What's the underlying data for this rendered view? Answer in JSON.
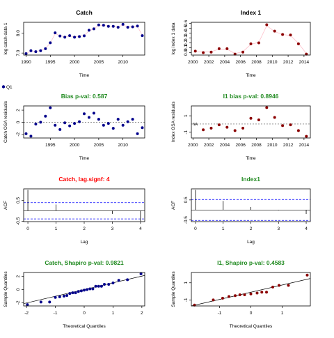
{
  "legend_label": "Q1",
  "chart_data": [
    {
      "id": "catch",
      "type": "scatter",
      "title": "Catch",
      "title_color": "#000000",
      "xlabel": "Time",
      "ylabel": "log catch data 1",
      "xlim": [
        1989.5,
        2014.5
      ],
      "ylim": [
        6.9,
        8.55
      ],
      "xticks": [
        1990,
        1995,
        2000,
        2005,
        2010
      ],
      "yticks": [
        7.0,
        8.0
      ],
      "ytick_labels": [
        "7.0",
        "8.0"
      ],
      "connect_line": true,
      "x": [
        1990,
        1991,
        1992,
        1993,
        1994,
        1995,
        1996,
        1997,
        1998,
        1999,
        2000,
        2001,
        2002,
        2003,
        2004,
        2005,
        2006,
        2007,
        2008,
        2009,
        2010,
        2011,
        2012,
        2013,
        2014
      ],
      "y": [
        6.97,
        7.12,
        7.07,
        7.12,
        7.22,
        7.52,
        8.02,
        7.86,
        7.8,
        7.88,
        7.8,
        7.83,
        7.87,
        8.15,
        8.22,
        8.42,
        8.4,
        8.35,
        8.35,
        8.3,
        8.45,
        8.3,
        8.32,
        8.36,
        7.88
      ],
      "series": [
        {
          "name": "observed",
          "values": [
            6.97,
            7.12,
            7.07,
            7.12,
            7.22,
            7.52,
            8.02,
            7.86,
            7.8,
            7.88,
            7.8,
            7.83,
            7.87,
            8.15,
            8.22,
            8.42,
            8.4,
            8.35,
            8.35,
            8.3,
            8.45,
            8.3,
            8.32,
            8.36,
            7.88
          ],
          "color": "#00008b"
        },
        {
          "name": "fitted",
          "values": [
            6.98,
            7.1,
            7.09,
            7.13,
            7.24,
            7.5,
            7.98,
            7.88,
            7.82,
            7.86,
            7.82,
            7.84,
            7.88,
            8.12,
            8.22,
            8.4,
            8.4,
            8.36,
            8.34,
            8.31,
            8.42,
            8.31,
            8.33,
            8.34,
            7.9
          ],
          "color": "#ffc0cb"
        }
      ]
    },
    {
      "id": "index1",
      "type": "scatter",
      "title": "Index 1",
      "title_color": "#000000",
      "xlabel": "Time",
      "ylabel": "log index 1 data",
      "xlim": [
        1999.8,
        2014.8
      ],
      "ylim": [
        -0.05,
        0.62
      ],
      "xticks": [
        2000,
        2002,
        2004,
        2006,
        2008,
        2010,
        2012,
        2014
      ],
      "yticks": [
        0.0,
        0.1,
        0.2,
        0.3,
        0.4,
        0.5,
        0.6
      ],
      "ytick_labels": [
        "0.0",
        "0.1",
        "0.2",
        "0.3",
        "0.4",
        "0.5",
        "0.6"
      ],
      "connect_line": true,
      "x": [
        2000.3,
        2001.3,
        2002.3,
        2003.3,
        2004.3,
        2005.3,
        2006.3,
        2007.3,
        2008.3,
        2009.3,
        2010.3,
        2011.3,
        2012.3,
        2013.3,
        2014.3
      ],
      "y": [
        0.03,
        0.0,
        0.01,
        0.08,
        0.08,
        -0.03,
        0.01,
        0.18,
        0.2,
        0.57,
        0.44,
        0.37,
        0.36,
        0.18,
        -0.03
      ],
      "series": [
        {
          "name": "observed",
          "values": [
            0.03,
            0.0,
            0.01,
            0.08,
            0.08,
            -0.03,
            0.01,
            0.18,
            0.2,
            0.57,
            0.44,
            0.37,
            0.36,
            0.18,
            -0.03
          ],
          "color": "#8b0000"
        },
        {
          "name": "fitted",
          "values": [
            0.02,
            0.01,
            0.02,
            0.07,
            0.07,
            -0.02,
            0.02,
            0.17,
            0.21,
            0.55,
            0.43,
            0.37,
            0.35,
            0.19,
            -0.02
          ],
          "color": "#ffc0cb"
        }
      ]
    },
    {
      "id": "bias-catch",
      "type": "scatter",
      "title": "Bias p-val: 0.587",
      "title_color": "#228b22",
      "xlabel": "Time",
      "ylabel": "Catch OSA residuals",
      "xlim": [
        1989.5,
        2014.5
      ],
      "ylim": [
        -2.6,
        2.7
      ],
      "xticks": [
        1995,
        2000,
        2005,
        2010
      ],
      "yticks": [
        -2,
        0,
        2
      ],
      "ytick_labels": [
        "-2",
        "0",
        "2"
      ],
      "zero_line": true,
      "x": [
        1990,
        1991,
        1992,
        1993,
        1994,
        1995,
        1996,
        1997,
        1998,
        1999,
        2000,
        2001,
        2002,
        2003,
        2004,
        2005,
        2006,
        2007,
        2008,
        2009,
        2010,
        2011,
        2012,
        2013,
        2014
      ],
      "y": [
        -1.9,
        -2.3,
        -0.3,
        0.0,
        1.0,
        2.4,
        -0.5,
        -1.2,
        -0.1,
        -0.6,
        -0.2,
        0.1,
        1.4,
        0.8,
        1.5,
        0.5,
        -0.5,
        -0.2,
        -1.0,
        0.5,
        -0.5,
        0.1,
        0.5,
        -1.9,
        -0.9
      ],
      "series": [
        {
          "name": "residuals",
          "values": [
            -1.9,
            -2.3,
            -0.3,
            0.0,
            1.0,
            2.4,
            -0.5,
            -1.2,
            -0.1,
            -0.6,
            -0.2,
            0.1,
            1.4,
            0.8,
            1.5,
            0.5,
            -0.5,
            -0.2,
            -1.0,
            0.5,
            -0.5,
            0.1,
            0.5,
            -1.9,
            -0.9
          ],
          "color": "#00008b"
        }
      ]
    },
    {
      "id": "bias-index",
      "type": "scatter",
      "title": "I1 bias p-val: 0.8946",
      "title_color": "#228b22",
      "xlabel": "Time",
      "ylabel": "Index OSA residuals",
      "xlim": [
        1999.8,
        2014.8
      ],
      "ylim": [
        -1.7,
        2.2
      ],
      "xticks": [
        2000,
        2002,
        2004,
        2006,
        2008,
        2010,
        2012,
        2014
      ],
      "yticks": [
        -1,
        1
      ],
      "ytick_labels": [
        "-1",
        "1"
      ],
      "zero_line": true,
      "na_label": "NA",
      "x": [
        2001.3,
        2002.3,
        2003.3,
        2004.3,
        2005.3,
        2006.3,
        2007.3,
        2008.3,
        2009.3,
        2010.3,
        2011.3,
        2012.3,
        2013.3,
        2014.3
      ],
      "y": [
        -0.7,
        -0.5,
        -0.1,
        -0.4,
        -0.8,
        -0.5,
        0.7,
        0.5,
        2.0,
        0.8,
        -0.2,
        -0.1,
        -0.8,
        -1.5
      ],
      "series": [
        {
          "name": "residuals",
          "values": [
            -0.7,
            -0.5,
            -0.1,
            -0.4,
            -0.8,
            -0.5,
            0.7,
            0.5,
            2.0,
            0.8,
            -0.2,
            -0.1,
            -0.8,
            -1.5
          ],
          "color": "#8b0000"
        }
      ]
    },
    {
      "id": "acf-catch",
      "type": "bar",
      "title": "Catch, lag.signf: 4",
      "title_color": "#ff0000",
      "xlabel": "Lag",
      "ylabel": "ACF",
      "xlim": [
        -0.15,
        4.15
      ],
      "ylim": [
        -0.52,
        1.05
      ],
      "xticks": [
        0,
        1,
        2,
        3,
        4
      ],
      "yticks": [
        -0.5,
        0.5
      ],
      "ytick_labels": [
        "-0.5",
        "0.5"
      ],
      "categories": [
        0,
        1,
        2,
        3,
        4
      ],
      "values": [
        1.0,
        0.3,
        0.0,
        -0.15,
        -0.5
      ],
      "conf_band": 0.39,
      "conf_color": "#0000ff"
    },
    {
      "id": "acf-index",
      "type": "bar",
      "title": "Index1",
      "title_color": "#228b22",
      "xlabel": "Lag",
      "ylabel": "ACF",
      "xlim": [
        -0.15,
        4.15
      ],
      "ylim": [
        -0.58,
        1.05
      ],
      "xticks": [
        0,
        1,
        2,
        3,
        4
      ],
      "yticks": [
        -0.5,
        0.5
      ],
      "ytick_labels": [
        "-0.5",
        "0.5"
      ],
      "categories": [
        0,
        1,
        2,
        3,
        4
      ],
      "values": [
        1.0,
        0.45,
        0.15,
        -0.02,
        -0.2
      ],
      "conf_band": 0.52,
      "conf_color": "#0000ff"
    },
    {
      "id": "qq-catch",
      "type": "scatter",
      "title": "Catch, Shapiro p-val: 0.9821",
      "title_color": "#228b22",
      "xlabel": "Theoretical Quantiles",
      "ylabel": "Sample Quantiles",
      "xlim": [
        -2.1,
        2.1
      ],
      "ylim": [
        -2.5,
        2.6
      ],
      "xticks": [
        -2,
        -1,
        0,
        1,
        2
      ],
      "yticks": [
        -2,
        0,
        2
      ],
      "ytick_labels": [
        "-2",
        "0",
        "2"
      ],
      "ref_line": [
        [
          -2.1,
          -2.15
        ],
        [
          2.1,
          2.15
        ]
      ],
      "x": [
        -1.97,
        -1.5,
        -1.2,
        -1.0,
        -0.85,
        -0.7,
        -0.6,
        -0.5,
        -0.4,
        -0.3,
        -0.2,
        -0.1,
        0.0,
        0.1,
        0.2,
        0.3,
        0.4,
        0.5,
        0.6,
        0.7,
        0.85,
        1.0,
        1.2,
        1.5,
        1.97
      ],
      "y": [
        -2.3,
        -1.9,
        -1.9,
        -1.2,
        -1.1,
        -1.0,
        -0.9,
        -0.6,
        -0.5,
        -0.5,
        -0.3,
        -0.2,
        -0.1,
        0.0,
        0.1,
        0.1,
        0.5,
        0.5,
        0.5,
        0.8,
        0.8,
        1.0,
        1.4,
        1.5,
        2.4
      ],
      "series": [
        {
          "name": "residuals",
          "values": [
            -2.3,
            -1.9,
            -1.9,
            -1.2,
            -1.1,
            -1.0,
            -0.9,
            -0.6,
            -0.5,
            -0.5,
            -0.3,
            -0.2,
            -0.1,
            0.0,
            0.1,
            0.1,
            0.5,
            0.5,
            0.5,
            0.8,
            0.8,
            1.0,
            1.4,
            1.5,
            2.4
          ],
          "color": "#00008b"
        }
      ]
    },
    {
      "id": "qq-index",
      "type": "scatter",
      "title": "I1, Shapiro p-val: 0.4583",
      "title_color": "#228b22",
      "xlabel": "Theoretical Quantiles",
      "ylabel": "Sample Quantiles",
      "xlim": [
        -1.9,
        1.9
      ],
      "ylim": [
        -1.7,
        2.2
      ],
      "xticks": [
        -1,
        0,
        1
      ],
      "yticks": [
        -1,
        1
      ],
      "ytick_labels": [
        "-1",
        "1"
      ],
      "ref_line": [
        [
          -1.9,
          -1.7
        ],
        [
          1.9,
          1.5
        ]
      ],
      "x": [
        -1.8,
        -1.2,
        -0.9,
        -0.7,
        -0.5,
        -0.35,
        -0.2,
        0.0,
        0.2,
        0.35,
        0.5,
        0.7,
        0.9,
        1.2,
        1.8
      ],
      "y": [
        -1.6,
        -1.0,
        -0.8,
        -0.6,
        -0.5,
        -0.4,
        -0.4,
        -0.3,
        -0.2,
        -0.1,
        -0.1,
        0.5,
        0.7,
        0.7,
        1.9
      ],
      "series": [
        {
          "name": "residuals",
          "values": [
            -1.6,
            -1.0,
            -0.8,
            -0.6,
            -0.5,
            -0.4,
            -0.4,
            -0.3,
            -0.2,
            -0.1,
            -0.1,
            0.5,
            0.7,
            0.7,
            1.9
          ],
          "color": "#8b0000"
        }
      ]
    }
  ]
}
